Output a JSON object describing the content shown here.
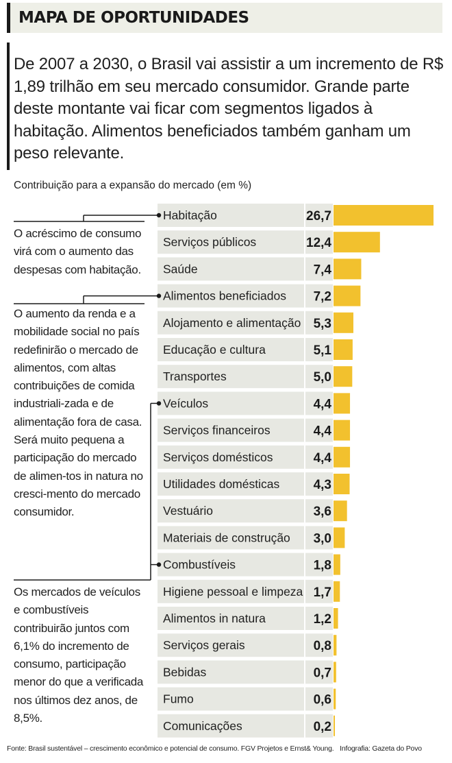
{
  "header": {
    "title": "MAPA DE OPORTUNIDADES"
  },
  "intro": "De 2007 a 2030, o Brasil vai assistir a um incremento de R$ 1,89 trilhão em seu mercado consumidor. Grande parte deste montante vai ficar com segmentos ligados à habitação. Alimentos beneficiados também ganham um peso relevante.",
  "chart_data": {
    "type": "bar",
    "orientation": "horizontal",
    "title": "Contribuição para a expansão do mercado (em %)",
    "categories": [
      "Habitação",
      "Serviços públicos",
      "Saúde",
      "Alimentos beneficiados",
      "Alojamento e alimentação",
      "Educação e cultura",
      "Transportes",
      "Veículos",
      "Serviços financeiros",
      "Serviços domésticos",
      "Utilidades domésticas",
      "Vestuário",
      "Materiais de construção",
      "Combustíveis",
      "Higiene pessoal e limpeza",
      "Alimentos in natura",
      "Serviços gerais",
      "Bebidas",
      "Fumo",
      "Comunicações"
    ],
    "values": [
      26.7,
      12.4,
      7.4,
      7.2,
      5.3,
      5.1,
      5.0,
      4.4,
      4.4,
      4.4,
      4.3,
      3.6,
      3.0,
      1.8,
      1.7,
      1.2,
      0.8,
      0.7,
      0.6,
      0.2
    ],
    "value_labels": [
      "26,7",
      "12,4",
      "7,4",
      "7,2",
      "5,3",
      "5,1",
      "5,0",
      "4,4",
      "4,4",
      "4,4",
      "4,3",
      "3,6",
      "3,0",
      "1,8",
      "1,7",
      "1,2",
      "0,8",
      "0,7",
      "0,6",
      "0,2"
    ],
    "bar_color": "#f2c12e",
    "xlim": [
      0,
      26.7
    ]
  },
  "notes": {
    "habitacao": "O acréscimo de consumo virá com o aumento das despesas com habitação.",
    "alimentos": "O aumento da renda e a mobilidade social no país redefinirão o mercado de alimentos, com altas contribuições de comida industriali-zada e de alimentação fora de casa. Será muito pequena a participação do mercado de alimen-tos in natura no cresci-mento do mercado consumidor.",
    "veiculos": "Os mercados de veículos e combustíveis contribuirão juntos com 6,1% do incremento de consumo, participação menor do que a verificada nos últimos dez anos, de 8,5%."
  },
  "footer": {
    "source": "Fonte: Brasil sustentável – crescimento econômico e potencial de consumo. FGV Projetos e Ernst& Young.",
    "credit": "Infografia: Gazeta do Povo"
  }
}
